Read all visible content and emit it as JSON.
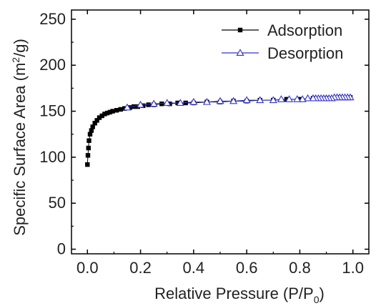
{
  "chart_data": {
    "type": "scatter",
    "title": "",
    "xlabel": {
      "main": "Relative Pressure (P/P",
      "sub": "0",
      "tail": ")"
    },
    "ylabel": {
      "main": "Specific Surface Area (m",
      "sup": "2",
      "tail": "/g)"
    },
    "xlim": [
      -0.06,
      1.06
    ],
    "ylim": [
      -5,
      260
    ],
    "xticks": [
      0.0,
      0.2,
      0.4,
      0.6,
      0.8,
      1.0
    ],
    "xtick_labels": [
      "0.0",
      "0.2",
      "0.4",
      "0.6",
      "0.8",
      "1.0"
    ],
    "yticks": [
      0,
      50,
      100,
      150,
      200,
      250
    ],
    "ytick_labels": [
      "0",
      "50",
      "100",
      "150",
      "200",
      "250"
    ],
    "grid": false,
    "legend_position": "top-right",
    "series": [
      {
        "name": "Adsorption",
        "marker": "filled-square",
        "color": "#000000",
        "points": [
          [
            0.0,
            92
          ],
          [
            0.002,
            102
          ],
          [
            0.004,
            110
          ],
          [
            0.006,
            118
          ],
          [
            0.01,
            125
          ],
          [
            0.015,
            129
          ],
          [
            0.02,
            133
          ],
          [
            0.028,
            137
          ],
          [
            0.036,
            140
          ],
          [
            0.045,
            143
          ],
          [
            0.055,
            145
          ],
          [
            0.065,
            147
          ],
          [
            0.075,
            148
          ],
          [
            0.085,
            149
          ],
          [
            0.095,
            150
          ],
          [
            0.11,
            151
          ],
          [
            0.125,
            152
          ],
          [
            0.14,
            153
          ],
          [
            0.16,
            154
          ],
          [
            0.175,
            155
          ],
          [
            0.19,
            155
          ],
          [
            0.21,
            156
          ],
          [
            0.23,
            157
          ],
          [
            0.25,
            157
          ],
          [
            0.28,
            158
          ],
          [
            0.31,
            158
          ],
          [
            0.34,
            159
          ],
          [
            0.37,
            159
          ],
          [
            0.4,
            159
          ],
          [
            0.45,
            160
          ],
          [
            0.5,
            160
          ],
          [
            0.55,
            161
          ],
          [
            0.6,
            161
          ],
          [
            0.65,
            162
          ],
          [
            0.7,
            162
          ],
          [
            0.75,
            163
          ],
          [
            0.8,
            163
          ],
          [
            0.85,
            164
          ],
          [
            0.9,
            164
          ],
          [
            0.95,
            165
          ],
          [
            0.99,
            165
          ]
        ]
      },
      {
        "name": "Desorption",
        "marker": "open-triangle",
        "color": "#3333cc",
        "points": [
          [
            0.99,
            165
          ],
          [
            0.98,
            165
          ],
          [
            0.97,
            165
          ],
          [
            0.96,
            165
          ],
          [
            0.95,
            165
          ],
          [
            0.94,
            165
          ],
          [
            0.93,
            165
          ],
          [
            0.92,
            164
          ],
          [
            0.91,
            164
          ],
          [
            0.9,
            164
          ],
          [
            0.89,
            164
          ],
          [
            0.88,
            164
          ],
          [
            0.87,
            164
          ],
          [
            0.86,
            164
          ],
          [
            0.85,
            164
          ],
          [
            0.83,
            164
          ],
          [
            0.81,
            163
          ],
          [
            0.79,
            163
          ],
          [
            0.76,
            163
          ],
          [
            0.73,
            163
          ],
          [
            0.7,
            162
          ],
          [
            0.65,
            162
          ],
          [
            0.6,
            162
          ],
          [
            0.55,
            161
          ],
          [
            0.5,
            161
          ],
          [
            0.45,
            160
          ],
          [
            0.4,
            160
          ],
          [
            0.35,
            159
          ],
          [
            0.3,
            159
          ],
          [
            0.25,
            158
          ],
          [
            0.2,
            157
          ],
          [
            0.15,
            154
          ]
        ]
      }
    ]
  }
}
